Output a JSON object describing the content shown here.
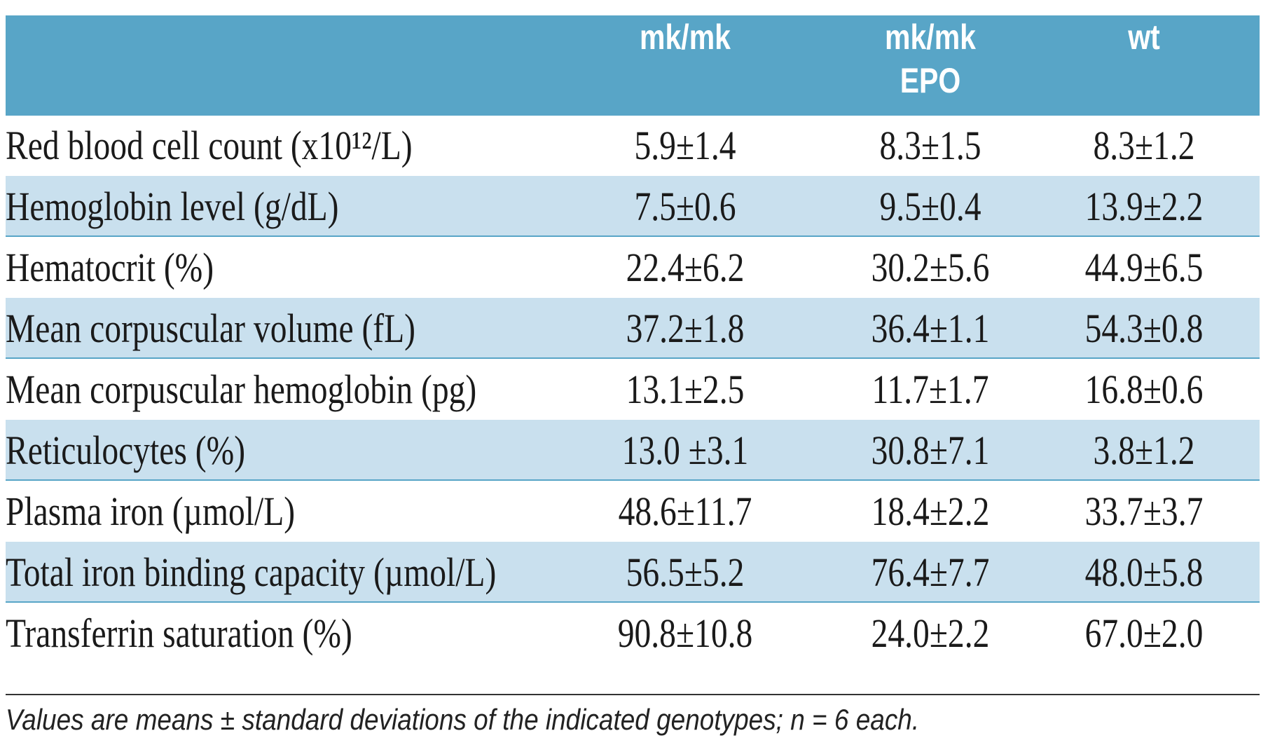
{
  "table": {
    "columns": [
      "mk/mk",
      "mk/mk EPO",
      "wt"
    ],
    "header": {
      "col1": "mk/mk",
      "col2_line1": "mk/mk",
      "col2_line2": "EPO",
      "col3": "wt"
    },
    "rows": [
      {
        "label": "Red blood cell count (x10¹²/L)",
        "v1": "5.9±1.4",
        "v2": "8.3±1.5",
        "v3": "8.3±1.2"
      },
      {
        "label": "Hemoglobin level (g/dL)",
        "v1": "7.5±0.6",
        "v2": "9.5±0.4",
        "v3": "13.9±2.2"
      },
      {
        "label": "Hematocrit (%)",
        "v1": "22.4±6.2",
        "v2": "30.2±5.6",
        "v3": "44.9±6.5"
      },
      {
        "label": "Mean corpuscular volume (fL)",
        "v1": "37.2±1.8",
        "v2": "36.4±1.1",
        "v3": "54.3±0.8"
      },
      {
        "label": "Mean corpuscular hemoglobin (pg)",
        "v1": "13.1±2.5",
        "v2": "11.7±1.7",
        "v3": "16.8±0.6"
      },
      {
        "label": "Reticulocytes (%)",
        "v1": "13.0 ±3.1",
        "v2": "30.8±7.1",
        "v3": "3.8±1.2"
      },
      {
        "label": "Plasma iron (µmol/L)",
        "v1": "48.6±11.7",
        "v2": "18.4±2.2",
        "v3": "33.7±3.7"
      },
      {
        "label": "Total iron binding capacity (µmol/L)",
        "v1": "56.5±5.2",
        "v2": "76.4±7.7",
        "v3": "48.0±5.8"
      },
      {
        "label": "Transferrin saturation (%)",
        "v1": "90.8±10.8",
        "v2": "24.0±2.2",
        "v3": "67.0±2.0"
      }
    ]
  },
  "footnote": "Values are means ± standard deviations of the indicated genotypes; n = 6 each.",
  "colors": {
    "header_bg": "#58a5c7",
    "shaded_row_bg": "#c9e0ee",
    "header_text": "#ffffff"
  }
}
